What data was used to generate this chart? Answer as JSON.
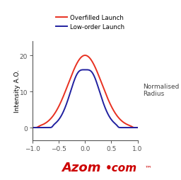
{
  "ylabel": "Intensity A.O.",
  "xlim": [
    -1.0,
    1.0
  ],
  "ylim": [
    -3.5,
    24
  ],
  "xticks": [
    -1.0,
    -0.5,
    0.0,
    0.5,
    1.0
  ],
  "yticks": [
    0,
    10,
    20
  ],
  "legend_entries": [
    "Overfilled Launch",
    "Low-order Launch"
  ],
  "line_colors": [
    "#e83020",
    "#2020a0"
  ],
  "normalised_radius_label": "Normalised\nRadius",
  "background_color": "#ffffff",
  "overfilled_peak": 20.0,
  "overfilled_sigma": 0.32,
  "overfilled_cutoff": 0.9,
  "loworder_peak": 19.5,
  "loworder_sigma": 0.24,
  "loworder_dip_depth": 3.5,
  "loworder_dip_sigma": 0.1,
  "loworder_cutoff": 0.62
}
